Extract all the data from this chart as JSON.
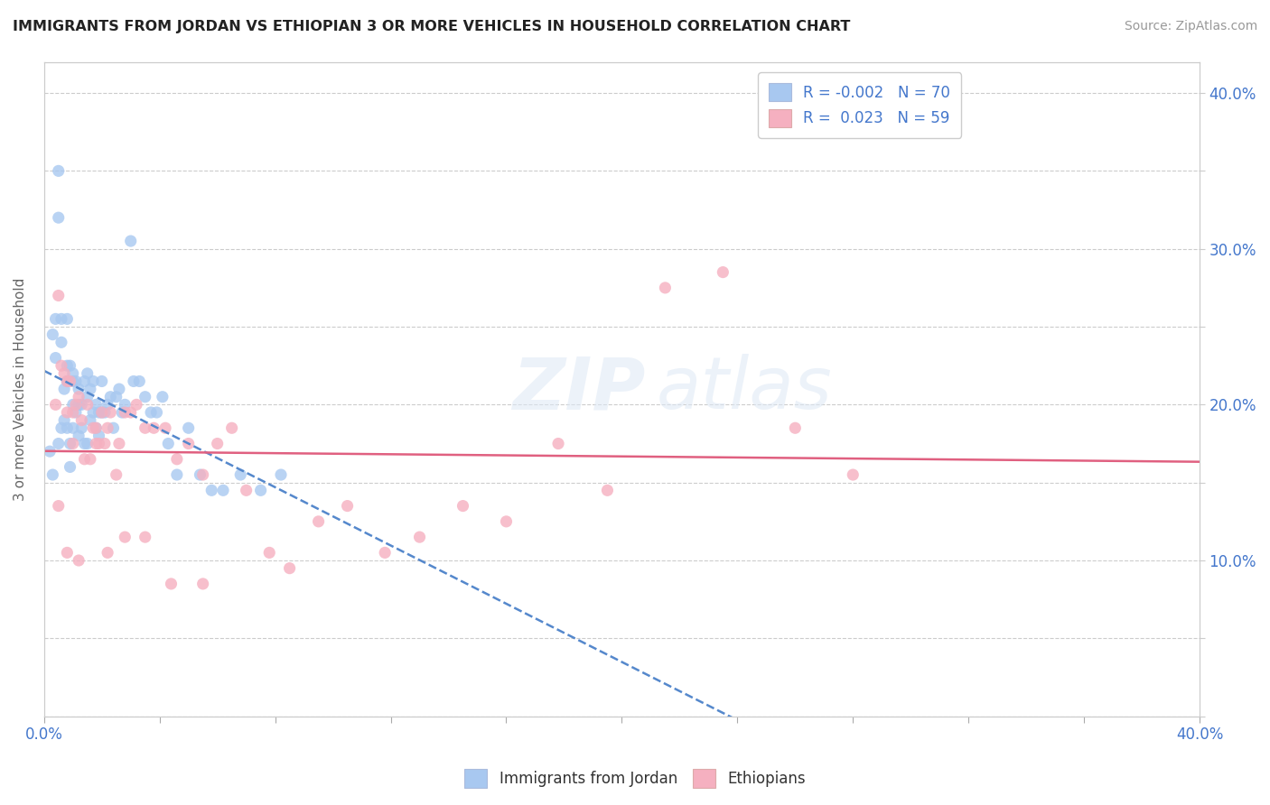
{
  "title": "IMMIGRANTS FROM JORDAN VS ETHIOPIAN 3 OR MORE VEHICLES IN HOUSEHOLD CORRELATION CHART",
  "source": "Source: ZipAtlas.com",
  "ylabel": "3 or more Vehicles in Household",
  "x_min": 0.0,
  "x_max": 0.4,
  "y_min": 0.0,
  "y_max": 0.42,
  "x_ticks": [
    0.0,
    0.04,
    0.08,
    0.12,
    0.16,
    0.2,
    0.24,
    0.28,
    0.32,
    0.36,
    0.4
  ],
  "y_ticks": [
    0.0,
    0.05,
    0.1,
    0.15,
    0.2,
    0.25,
    0.3,
    0.35,
    0.4
  ],
  "legend_r1": "-0.002",
  "legend_n1": "70",
  "legend_r2": "0.023",
  "legend_n2": "59",
  "legend_label1": "Immigrants from Jordan",
  "legend_label2": "Ethiopians",
  "color_blue": "#a8c8f0",
  "color_pink": "#f5b0c0",
  "color_blue_line": "#5588cc",
  "color_pink_line": "#e06080",
  "color_text_blue": "#4477cc",
  "background_color": "#ffffff",
  "jordan_x": [
    0.002,
    0.003,
    0.003,
    0.004,
    0.004,
    0.005,
    0.005,
    0.005,
    0.006,
    0.006,
    0.006,
    0.007,
    0.007,
    0.008,
    0.008,
    0.008,
    0.008,
    0.009,
    0.009,
    0.009,
    0.01,
    0.01,
    0.01,
    0.01,
    0.011,
    0.011,
    0.012,
    0.012,
    0.012,
    0.013,
    0.013,
    0.014,
    0.014,
    0.015,
    0.015,
    0.015,
    0.016,
    0.016,
    0.017,
    0.017,
    0.018,
    0.018,
    0.019,
    0.019,
    0.02,
    0.02,
    0.021,
    0.022,
    0.023,
    0.024,
    0.025,
    0.026,
    0.027,
    0.028,
    0.03,
    0.031,
    0.033,
    0.035,
    0.037,
    0.039,
    0.041,
    0.043,
    0.046,
    0.05,
    0.054,
    0.058,
    0.062,
    0.068,
    0.075,
    0.082
  ],
  "jordan_y": [
    0.17,
    0.155,
    0.245,
    0.23,
    0.255,
    0.35,
    0.32,
    0.175,
    0.24,
    0.255,
    0.185,
    0.21,
    0.19,
    0.255,
    0.225,
    0.215,
    0.185,
    0.225,
    0.175,
    0.16,
    0.215,
    0.2,
    0.185,
    0.22,
    0.195,
    0.215,
    0.21,
    0.2,
    0.18,
    0.2,
    0.185,
    0.215,
    0.175,
    0.22,
    0.205,
    0.175,
    0.21,
    0.19,
    0.215,
    0.195,
    0.2,
    0.185,
    0.195,
    0.18,
    0.215,
    0.195,
    0.195,
    0.2,
    0.205,
    0.185,
    0.205,
    0.21,
    0.195,
    0.2,
    0.305,
    0.215,
    0.215,
    0.205,
    0.195,
    0.195,
    0.205,
    0.175,
    0.155,
    0.185,
    0.155,
    0.145,
    0.145,
    0.155,
    0.145,
    0.155
  ],
  "ethiopian_x": [
    0.004,
    0.005,
    0.006,
    0.007,
    0.008,
    0.008,
    0.009,
    0.01,
    0.01,
    0.011,
    0.012,
    0.013,
    0.014,
    0.015,
    0.016,
    0.017,
    0.018,
    0.019,
    0.02,
    0.021,
    0.022,
    0.023,
    0.025,
    0.026,
    0.028,
    0.03,
    0.032,
    0.035,
    0.038,
    0.042,
    0.046,
    0.05,
    0.055,
    0.06,
    0.065,
    0.07,
    0.078,
    0.085,
    0.095,
    0.105,
    0.118,
    0.13,
    0.145,
    0.16,
    0.178,
    0.195,
    0.215,
    0.235,
    0.26,
    0.28,
    0.005,
    0.008,
    0.012,
    0.018,
    0.022,
    0.028,
    0.035,
    0.044,
    0.055
  ],
  "ethiopian_y": [
    0.2,
    0.27,
    0.225,
    0.22,
    0.195,
    0.215,
    0.215,
    0.195,
    0.175,
    0.2,
    0.205,
    0.19,
    0.165,
    0.2,
    0.165,
    0.185,
    0.185,
    0.175,
    0.195,
    0.175,
    0.185,
    0.195,
    0.155,
    0.175,
    0.195,
    0.195,
    0.2,
    0.185,
    0.185,
    0.185,
    0.165,
    0.175,
    0.155,
    0.175,
    0.185,
    0.145,
    0.105,
    0.095,
    0.125,
    0.135,
    0.105,
    0.115,
    0.135,
    0.125,
    0.175,
    0.145,
    0.275,
    0.285,
    0.185,
    0.155,
    0.135,
    0.105,
    0.1,
    0.175,
    0.105,
    0.115,
    0.115,
    0.085,
    0.085
  ]
}
